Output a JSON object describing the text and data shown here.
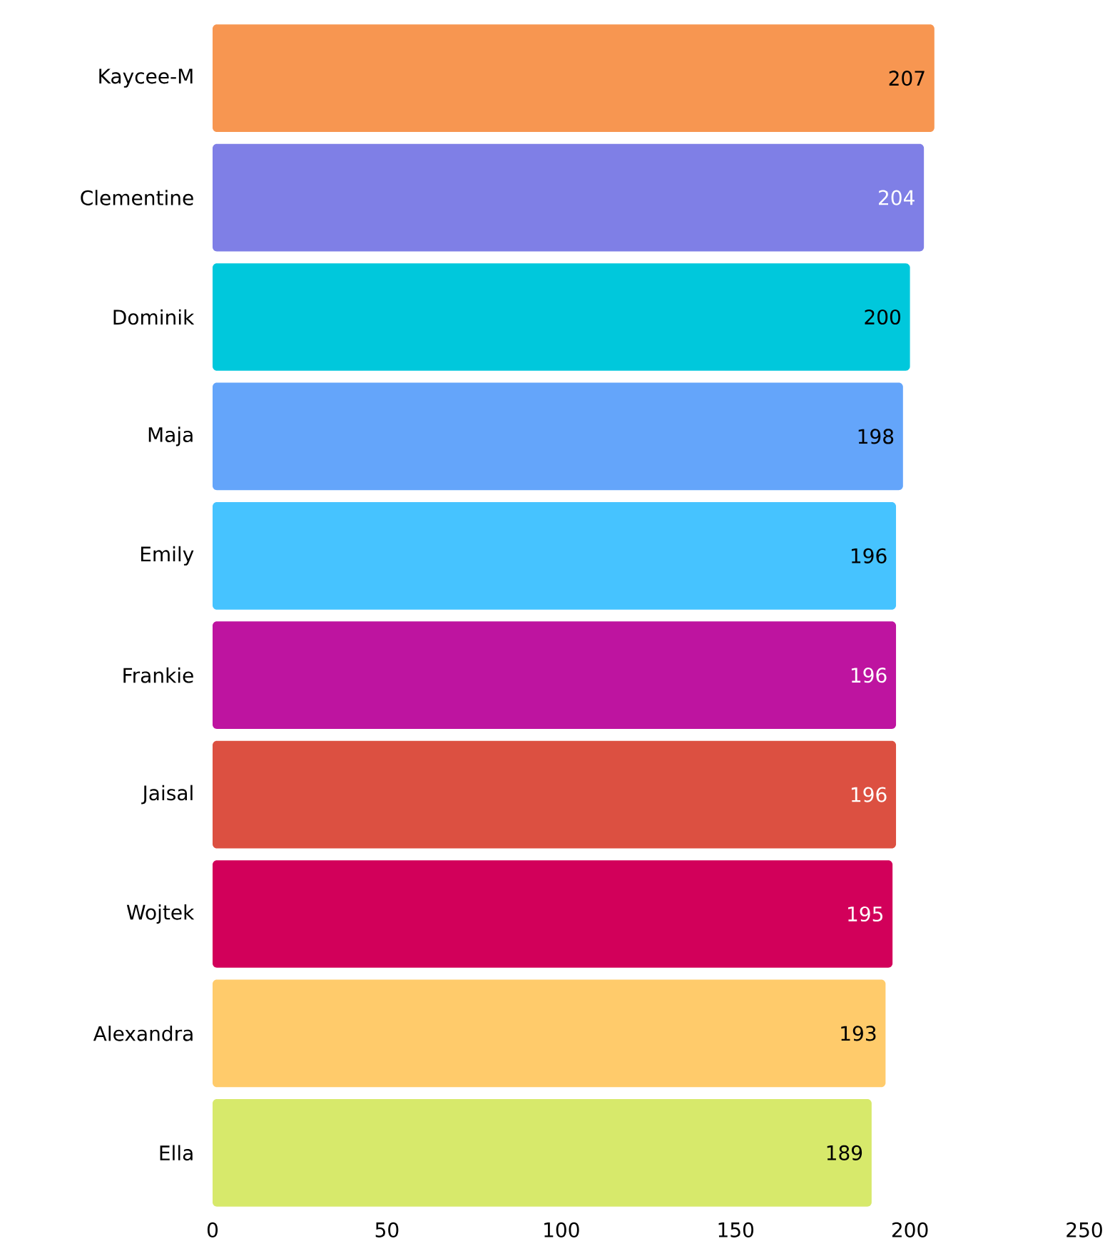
{
  "chart_data": {
    "type": "bar",
    "orientation": "horizontal",
    "categories": [
      "Kaycee-M",
      "Clementine",
      "Dominik",
      "Maja",
      "Emily",
      "Frankie",
      "Jaisal",
      "Wojtek",
      "Alexandra",
      "Ella"
    ],
    "values": [
      207,
      204,
      200,
      198,
      196,
      196,
      196,
      195,
      193,
      189
    ],
    "colors": [
      "#f79651",
      "#7f7fe6",
      "#00c8dc",
      "#64a5fa",
      "#46c3ff",
      "#be14a0",
      "#dc5041",
      "#d2005a",
      "#ffcb6b",
      "#d7e96b"
    ],
    "xlim": [
      0,
      250
    ],
    "xticks": [
      0,
      50,
      100,
      150,
      200,
      250
    ],
    "data_labels": true
  }
}
